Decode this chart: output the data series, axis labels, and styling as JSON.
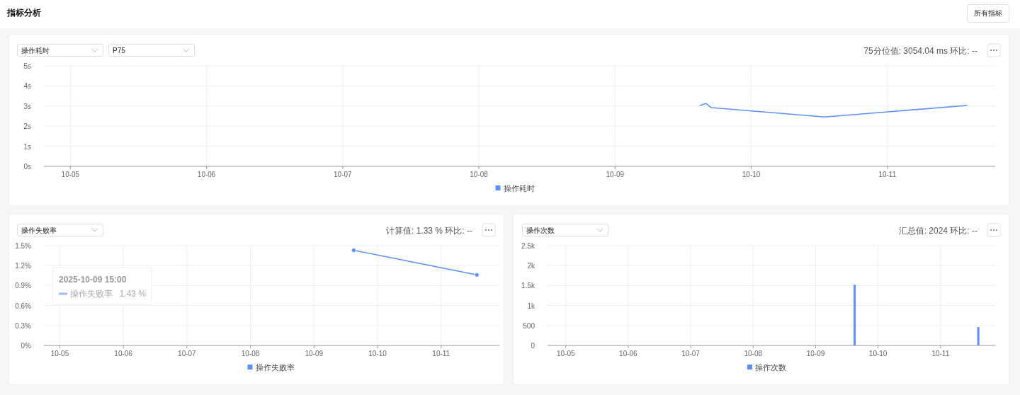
{
  "chart_data": [
    {
      "type": "line",
      "annotations": [
        "指标分析",
        "所有指标",
        "操作耗时",
        "P75",
        "75分位值: 3054.04 ms  环比: --"
      ],
      "series": [
        {
          "name": "操作耗时",
          "color": "#5b8ff9",
          "x": [
            "2025-10-09T15:00",
            "2025-10-09T16:00",
            "2025-10-09T17:00",
            "2025-10-10T13:00",
            "2025-10-11T14:00"
          ],
          "values": [
            3.03,
            3.13,
            2.92,
            2.46,
            3.03
          ]
        }
      ],
      "xlim": [
        "2025-10-04T19:20",
        "2025-10-11T19:00"
      ],
      "xticks": [
        {
          "value": "2025-10-05",
          "label": "10-05"
        },
        {
          "value": "2025-10-06",
          "label": "10-06"
        },
        {
          "value": "2025-10-07",
          "label": "10-07"
        },
        {
          "value": "2025-10-08",
          "label": "10-08"
        },
        {
          "value": "2025-10-09",
          "label": "10-09"
        },
        {
          "value": "2025-10-10",
          "label": "10-10"
        },
        {
          "value": "2025-10-11",
          "label": "10-11"
        }
      ],
      "ylim": [
        0,
        5
      ],
      "yticks": [
        {
          "value": 0,
          "label": "0s"
        },
        {
          "value": 1,
          "label": "1s"
        },
        {
          "value": 2,
          "label": "2s"
        },
        {
          "value": 3,
          "label": "3s"
        },
        {
          "value": 4,
          "label": "4s"
        },
        {
          "value": 5,
          "label": "5s"
        }
      ],
      "grid": true,
      "legend": "bottom",
      "marker": "none"
    },
    {
      "type": "line",
      "annotations": [
        "操作失败率",
        "计算值: 1.33 %  环比: --",
        "2025-10-09 15:00",
        "操作失败率",
        "1.43 %"
      ],
      "series": [
        {
          "name": "操作失败率",
          "color": "#5b8ff9",
          "x": [
            "2025-10-09T15:00",
            "2025-10-11T13:30"
          ],
          "values": [
            1.43,
            1.06
          ]
        }
      ],
      "xlim": [
        "2025-10-04T18:00",
        "2025-10-11T22:00"
      ],
      "xticks": [
        {
          "value": "2025-10-05",
          "label": "10-05"
        },
        {
          "value": "2025-10-06",
          "label": "10-06"
        },
        {
          "value": "2025-10-07",
          "label": "10-07"
        },
        {
          "value": "2025-10-08",
          "label": "10-08"
        },
        {
          "value": "2025-10-09",
          "label": "10-09"
        },
        {
          "value": "2025-10-10",
          "label": "10-10"
        },
        {
          "value": "2025-10-11",
          "label": "10-11"
        }
      ],
      "ylim": [
        0,
        1.5
      ],
      "yticks": [
        {
          "value": 0,
          "label": "0%"
        },
        {
          "value": 0.3,
          "label": "0.3%"
        },
        {
          "value": 0.6,
          "label": "0.6%"
        },
        {
          "value": 0.9,
          "label": "0.9%"
        },
        {
          "value": 1.2,
          "label": "1.2%"
        },
        {
          "value": 1.5,
          "label": "1.5%"
        }
      ],
      "grid": true,
      "legend": "bottom",
      "marker": "circle"
    },
    {
      "type": "bar",
      "annotations": [
        "操作次数",
        "汇总值: 2024  环比: --"
      ],
      "series": [
        {
          "name": "操作次数",
          "color": "#5b8ff9",
          "x": [
            "2025-10-09T15:00",
            "2025-10-11T14:30"
          ],
          "values": [
            1520,
            460
          ]
        }
      ],
      "xlim": [
        "2025-10-04T17:00",
        "2025-10-11T21:00"
      ],
      "xticks": [
        {
          "value": "2025-10-05",
          "label": "10-05"
        },
        {
          "value": "2025-10-06",
          "label": "10-06"
        },
        {
          "value": "2025-10-07",
          "label": "10-07"
        },
        {
          "value": "2025-10-08",
          "label": "10-08"
        },
        {
          "value": "2025-10-09",
          "label": "10-09"
        },
        {
          "value": "2025-10-10",
          "label": "10-10"
        },
        {
          "value": "2025-10-11",
          "label": "10-11"
        }
      ],
      "ylim": [
        0,
        2500
      ],
      "yticks": [
        0,
        500,
        {
          "value": 1000,
          "label": "1k"
        },
        {
          "value": 1500,
          "label": "1.5k"
        },
        {
          "value": 2000,
          "label": "2k"
        },
        {
          "value": 2500,
          "label": "2.5k"
        }
      ],
      "grid": true,
      "legend": "bottom"
    }
  ]
}
